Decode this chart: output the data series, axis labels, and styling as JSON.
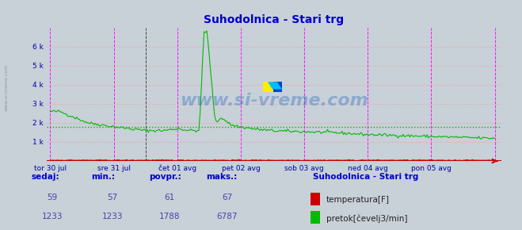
{
  "title": "Suhodolnica - Stari trg",
  "title_color": "#0000cc",
  "bg_color": "#c8d0d8",
  "plot_bg_color": "#c8d0d8",
  "grid_color_h": "#ff8888",
  "vline_color_magenta": "#ff00ff",
  "ylabel_color": "#0000aa",
  "xlabel_color": "#0000aa",
  "watermark": "www.si-vreme.com",
  "watermark_color": "#0055bb",
  "watermark_alpha": 0.3,
  "ylim": [
    0,
    7000
  ],
  "avg_line_value": 1788,
  "avg_line_color": "#00bb00",
  "temp_line_color": "#cc0000",
  "flow_line_color": "#00bb00",
  "xticklabels": [
    "tor 30 jul",
    "sre 31 jul",
    "čet 01 avg",
    "pet 02 avg",
    "sob 03 avg",
    "ned 04 avg",
    "pon 05 avg"
  ],
  "n_points": 336,
  "legend_title": "Suhodolnica - Stari trg",
  "legend_title_color": "#0000cc",
  "sedaj_label": "sedaj:",
  "min_label": "min.:",
  "povpr_label": "povpr.:",
  "maks_label": "maks.:",
  "temp_sedaj": 59,
  "temp_min": 57,
  "temp_povpr": 61,
  "temp_maks": 67,
  "flow_sedaj": 1233,
  "flow_min": 1233,
  "flow_povpr": 1788,
  "flow_maks": 6787,
  "label_temp": "temperatura[F]",
  "label_flow": "pretok[čevelj3/min]",
  "table_color": "#0000cc",
  "table_value_color": "#4444aa"
}
